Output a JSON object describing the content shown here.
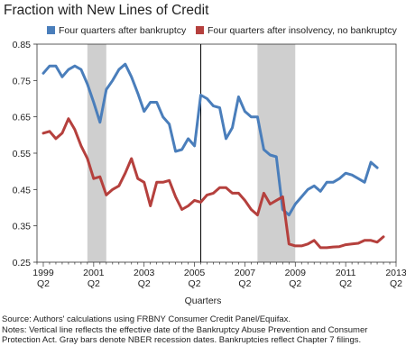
{
  "chart_data": {
    "type": "line",
    "title": "Fraction with New Lines of Credit",
    "xlabel": "Quarters",
    "ylabel": "",
    "ylim": [
      0.25,
      0.85
    ],
    "yticks": [
      "0.85",
      "0.75",
      "0.65",
      "0.55",
      "0.45",
      "0.35",
      "0.25"
    ],
    "xticks": [
      {
        "year": "1999",
        "q": "Q2",
        "x": 1999.25
      },
      {
        "year": "2001",
        "q": "Q2",
        "x": 2001.25
      },
      {
        "year": "2003",
        "q": "Q2",
        "x": 2003.25
      },
      {
        "year": "2005",
        "q": "Q2",
        "x": 2005.25
      },
      {
        "year": "2007",
        "q": "Q2",
        "x": 2007.25
      },
      {
        "year": "2009",
        "q": "Q2",
        "x": 2009.25
      },
      {
        "year": "2011",
        "q": "Q2",
        "x": 2011.25
      },
      {
        "year": "2013",
        "q": "Q2",
        "x": 2013.25
      }
    ],
    "recessions": [
      [
        2001.0,
        2001.75
      ],
      [
        2007.75,
        2009.25
      ]
    ],
    "vline": 2005.5,
    "legend_position": "top",
    "series": [
      {
        "name": "Four quarters after bankruptcy",
        "color": "#4a7ebb",
        "x": [
          1999.25,
          1999.5,
          1999.75,
          2000.0,
          2000.25,
          2000.5,
          2000.75,
          2001.0,
          2001.25,
          2001.5,
          2001.75,
          2002.0,
          2002.25,
          2002.5,
          2002.75,
          2003.0,
          2003.25,
          2003.5,
          2003.75,
          2004.0,
          2004.25,
          2004.5,
          2004.75,
          2005.0,
          2005.25,
          2005.5,
          2005.75,
          2006.0,
          2006.25,
          2006.5,
          2006.75,
          2007.0,
          2007.25,
          2007.5,
          2007.75,
          2008.0,
          2008.25,
          2008.5,
          2008.75,
          2009.0,
          2009.25,
          2009.5,
          2009.75,
          2010.0,
          2010.25,
          2010.5,
          2010.75,
          2011.0,
          2011.25,
          2011.5,
          2011.75,
          2012.0,
          2012.25,
          2012.5,
          2012.75
        ],
        "values": [
          0.77,
          0.79,
          0.79,
          0.76,
          0.78,
          0.79,
          0.78,
          0.74,
          0.69,
          0.635,
          0.725,
          0.75,
          0.78,
          0.795,
          0.76,
          0.715,
          0.665,
          0.69,
          0.69,
          0.65,
          0.63,
          0.555,
          0.56,
          0.59,
          0.57,
          0.71,
          0.7,
          0.68,
          0.675,
          0.59,
          0.62,
          0.705,
          0.665,
          0.65,
          0.65,
          0.56,
          0.545,
          0.54,
          0.395,
          0.38,
          0.41,
          0.43,
          0.45,
          0.46,
          0.445,
          0.47,
          0.47,
          0.48,
          0.495,
          0.49,
          0.48,
          0.47,
          0.525,
          0.51,
          null
        ]
      },
      {
        "name": "Four quarters after insolvency, no bankruptcy",
        "color": "#b5403d",
        "x": [
          1999.25,
          1999.5,
          1999.75,
          2000.0,
          2000.25,
          2000.5,
          2000.75,
          2001.0,
          2001.25,
          2001.5,
          2001.75,
          2002.0,
          2002.25,
          2002.5,
          2002.75,
          2003.0,
          2003.25,
          2003.5,
          2003.75,
          2004.0,
          2004.25,
          2004.5,
          2004.75,
          2005.0,
          2005.25,
          2005.5,
          2005.75,
          2006.0,
          2006.25,
          2006.5,
          2006.75,
          2007.0,
          2007.25,
          2007.5,
          2007.75,
          2008.0,
          2008.25,
          2008.5,
          2008.75,
          2009.0,
          2009.25,
          2009.5,
          2009.75,
          2010.0,
          2010.25,
          2010.5,
          2010.75,
          2011.0,
          2011.25,
          2011.5,
          2011.75,
          2012.0,
          2012.25,
          2012.5,
          2012.75
        ],
        "values": [
          0.605,
          0.61,
          0.59,
          0.605,
          0.645,
          0.615,
          0.57,
          0.535,
          0.48,
          0.485,
          0.435,
          0.45,
          0.46,
          0.495,
          0.535,
          0.48,
          0.47,
          0.405,
          0.47,
          0.47,
          0.475,
          0.43,
          0.395,
          0.405,
          0.42,
          0.415,
          0.435,
          0.44,
          0.455,
          0.455,
          0.44,
          0.44,
          0.42,
          0.395,
          0.38,
          0.44,
          0.41,
          0.42,
          0.43,
          0.3,
          0.295,
          0.295,
          0.3,
          0.31,
          0.29,
          0.29,
          0.292,
          0.293,
          0.298,
          0.3,
          0.302,
          0.31,
          0.31,
          0.305,
          0.32
        ]
      }
    ]
  },
  "source": "Source: Authors' calculations using FRBNY Consumer Credit Panel/Equifax.",
  "notes": "Notes: Vertical line reflects the effective date of the Bankruptcy Abuse Prevention and Consumer Protection Act. Gray bars denote NBER recession dates. Bankruptcies reflect Chapter 7 filings."
}
